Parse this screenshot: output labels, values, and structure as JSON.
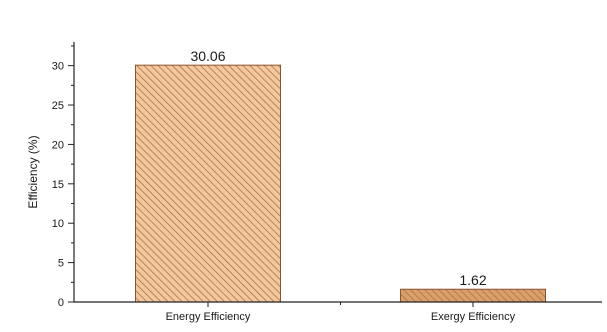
{
  "chart_data": {
    "type": "bar",
    "title": "",
    "xlabel": "",
    "ylabel": "Efficiency (%)",
    "categories": [
      "Energy Efficiency",
      "Exergy Efficiency"
    ],
    "values": [
      30.06,
      1.62
    ],
    "data_labels": [
      "30.06",
      "1.62"
    ],
    "ylim": [
      0,
      33
    ],
    "yticks": [
      0,
      5,
      10,
      15,
      20,
      25,
      30
    ],
    "ytick_labels": [
      "0",
      "5",
      "10",
      "15",
      "20",
      "25",
      "30"
    ],
    "grid": false,
    "legend": "none",
    "bar_fill_colors": [
      "#f2c8a0",
      "#d8a06c"
    ],
    "bar_hatch_color": "#b5703f",
    "bar_edge_color": "#8a5530",
    "bar_hatch": "diagonal"
  }
}
